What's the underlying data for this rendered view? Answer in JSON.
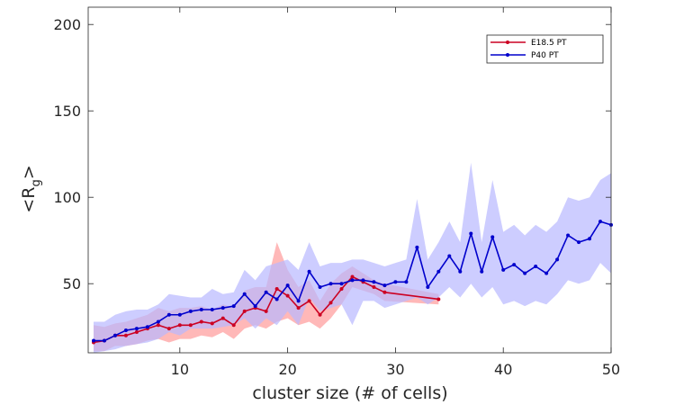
{
  "chart_data": {
    "type": "line",
    "title": "",
    "xlabel": "cluster size (# of cells)",
    "ylabel_main": "<R",
    "ylabel_sub": "g",
    "ylabel_close": ">",
    "xlim": [
      1.5,
      50
    ],
    "ylim": [
      10,
      210
    ],
    "xticks": [
      10,
      20,
      30,
      40,
      50
    ],
    "yticks": [
      50,
      100,
      150,
      200
    ],
    "grid": false,
    "legend_position": "top-right",
    "series": [
      {
        "name": "E18.5 PT",
        "color": "#cc0022",
        "band_color": "#ff9a9a",
        "x": [
          2,
          3,
          4,
          5,
          6,
          7,
          8,
          9,
          10,
          11,
          12,
          13,
          14,
          15,
          16,
          17,
          18,
          19,
          20,
          21,
          22,
          23,
          24,
          25,
          26,
          27,
          28,
          29,
          34
        ],
        "y": [
          16,
          17,
          20,
          20,
          22,
          24,
          26,
          24,
          26,
          26,
          28,
          27,
          30,
          26,
          34,
          36,
          34,
          47,
          43,
          36,
          40,
          32,
          39,
          47,
          54,
          51,
          48,
          45,
          41
        ],
        "upper": [
          26,
          25,
          27,
          28,
          30,
          32,
          36,
          34,
          36,
          36,
          37,
          35,
          38,
          36,
          46,
          48,
          48,
          74,
          58,
          48,
          52,
          40,
          50,
          56,
          60,
          56,
          52,
          50,
          44
        ],
        "lower": [
          11,
          11,
          14,
          14,
          15,
          17,
          18,
          16,
          18,
          18,
          20,
          19,
          22,
          18,
          24,
          26,
          24,
          28,
          30,
          26,
          28,
          24,
          30,
          38,
          48,
          46,
          44,
          40,
          38
        ]
      },
      {
        "name": "P40 PT",
        "color": "#0000cc",
        "band_color": "#b8b8ff",
        "x": [
          2,
          3,
          4,
          5,
          6,
          7,
          8,
          9,
          10,
          11,
          12,
          13,
          14,
          15,
          16,
          17,
          18,
          19,
          20,
          21,
          22,
          23,
          24,
          25,
          26,
          27,
          28,
          29,
          30,
          31,
          32,
          33,
          34,
          35,
          36,
          37,
          38,
          39,
          40,
          41,
          42,
          43,
          44,
          45,
          46,
          47,
          48,
          49,
          50
        ],
        "y": [
          17,
          17,
          20,
          23,
          24,
          25,
          28,
          32,
          32,
          34,
          35,
          35,
          36,
          37,
          44,
          37,
          45,
          41,
          49,
          40,
          57,
          48,
          50,
          50,
          52,
          52,
          51,
          49,
          51,
          51,
          71,
          48,
          57,
          66,
          57,
          79,
          57,
          77,
          58,
          61,
          56,
          60,
          56,
          64,
          78,
          74,
          76,
          86,
          84
        ],
        "upper": [
          28,
          28,
          32,
          34,
          35,
          35,
          38,
          44,
          43,
          42,
          42,
          47,
          44,
          45,
          58,
          52,
          60,
          62,
          64,
          58,
          74,
          60,
          62,
          62,
          64,
          64,
          62,
          60,
          62,
          64,
          99,
          64,
          74,
          86,
          74,
          120,
          74,
          110,
          80,
          84,
          78,
          84,
          80,
          86,
          100,
          98,
          100,
          110,
          114
        ],
        "lower": [
          10,
          11,
          12,
          14,
          15,
          16,
          18,
          22,
          20,
          24,
          24,
          24,
          25,
          26,
          30,
          24,
          30,
          26,
          34,
          26,
          42,
          34,
          36,
          38,
          26,
          40,
          40,
          36,
          38,
          40,
          42,
          38,
          42,
          48,
          42,
          50,
          42,
          48,
          38,
          40,
          37,
          40,
          38,
          44,
          52,
          50,
          52,
          62,
          56
        ]
      }
    ]
  }
}
